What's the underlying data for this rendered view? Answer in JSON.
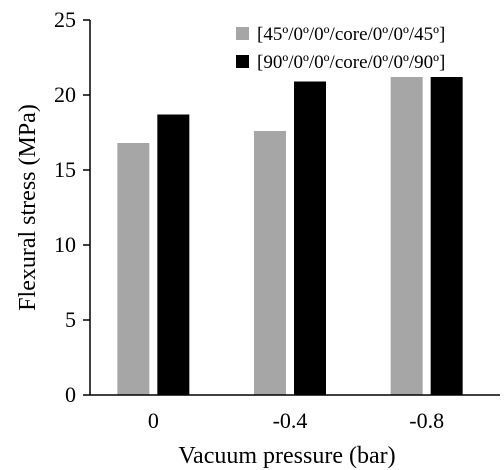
{
  "chart_data": {
    "type": "bar",
    "categories": [
      "0",
      "-0.4",
      "-0.8"
    ],
    "series": [
      {
        "name": "[45º/0º/0º/core/0º/0º/45º]",
        "values": [
          16.8,
          17.6,
          21.2
        ],
        "color": "#a6a6a6"
      },
      {
        "name": "[90º/0º/0º/core/0º/0º/90º]",
        "values": [
          18.7,
          20.9,
          21.2
        ],
        "color": "#000000"
      }
    ],
    "title": "",
    "xlabel": "Vacuum pressure (bar)",
    "ylabel": "Flexural stress (MPa)",
    "ylim": [
      0,
      25
    ],
    "yticks": [
      "0",
      "5",
      "10",
      "15",
      "20",
      "25"
    ],
    "grid": false,
    "legend_position": "top-right"
  }
}
